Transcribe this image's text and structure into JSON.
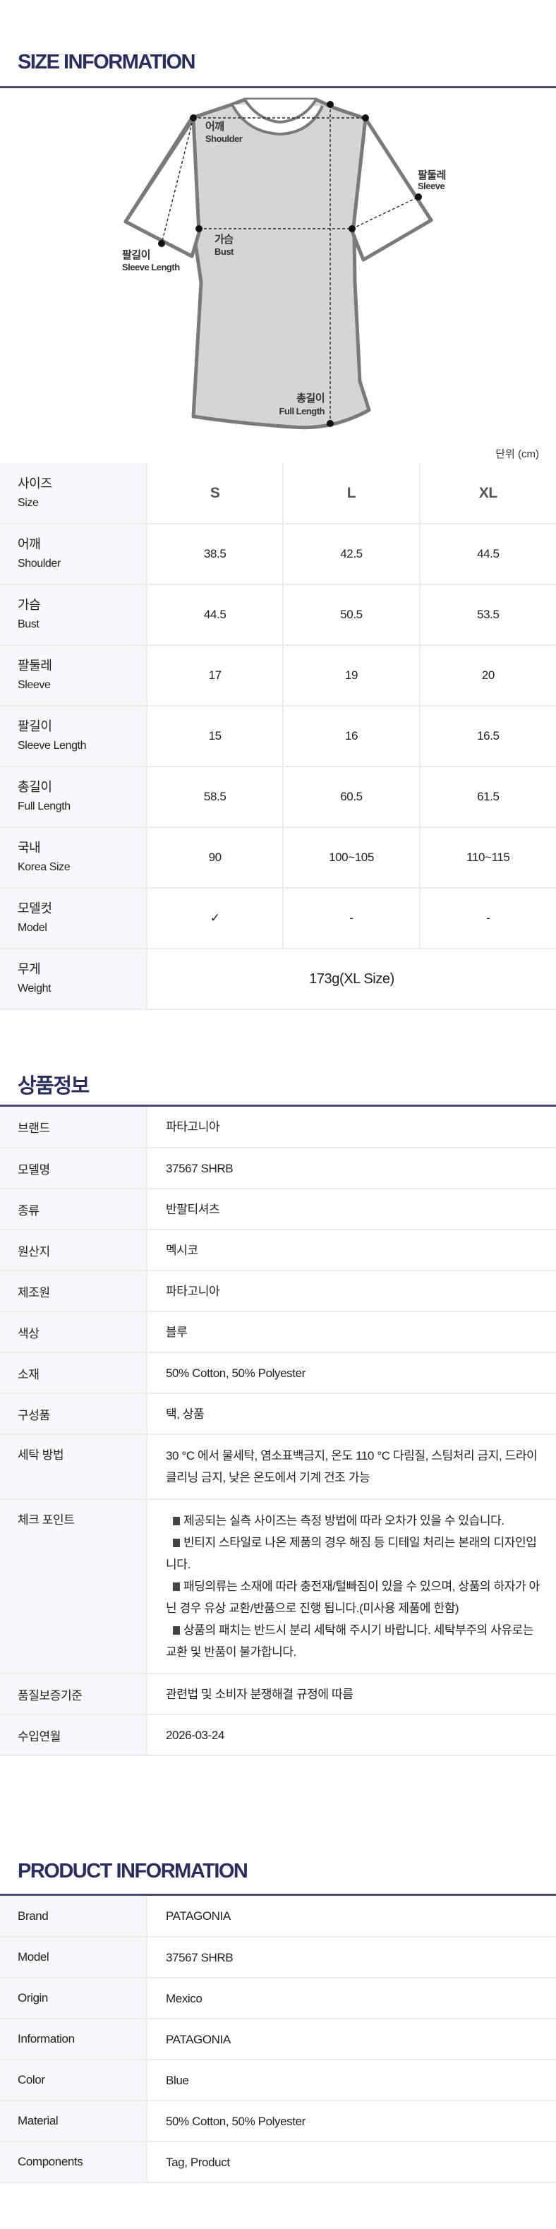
{
  "size_section": {
    "title": "SIZE INFORMATION",
    "diagram": {
      "shoulder": {
        "ko": "어깨",
        "en": "Shoulder"
      },
      "sleeve": {
        "ko": "팔둘레",
        "en": "Sleeve"
      },
      "bust": {
        "ko": "가슴",
        "en": "Bust"
      },
      "sleeve_length": {
        "ko": "팔길이",
        "en": "Sleeve Length"
      },
      "full_length": {
        "ko": "총길이",
        "en": "Full Length"
      }
    },
    "unit": "단위 (cm)",
    "table": {
      "header": {
        "ko": "사이즈",
        "en": "Size",
        "sizes": [
          "S",
          "L",
          "XL"
        ]
      },
      "rows": [
        {
          "ko": "어깨",
          "en": "Shoulder",
          "values": [
            "38.5",
            "42.5",
            "44.5"
          ]
        },
        {
          "ko": "가슴",
          "en": "Bust",
          "values": [
            "44.5",
            "50.5",
            "53.5"
          ]
        },
        {
          "ko": "팔둘레",
          "en": "Sleeve",
          "values": [
            "17",
            "19",
            "20"
          ]
        },
        {
          "ko": "팔길이",
          "en": "Sleeve Length",
          "values": [
            "15",
            "16",
            "16.5"
          ]
        },
        {
          "ko": "총길이",
          "en": "Full Length",
          "values": [
            "58.5",
            "60.5",
            "61.5"
          ]
        },
        {
          "ko": "국내",
          "en": "Korea Size",
          "values": [
            "90",
            "100~105",
            "110~115"
          ]
        },
        {
          "ko": "모델컷",
          "en": "Model",
          "values": [
            "✓",
            "-",
            "-"
          ]
        }
      ],
      "weight": {
        "ko": "무게",
        "en": "Weight",
        "value": "173g(XL Size)"
      }
    }
  },
  "kr_info": {
    "title": "상품정보",
    "rows": [
      {
        "label": "브랜드",
        "value": "파타고니아"
      },
      {
        "label": "모델명",
        "value": "37567 SHRB"
      },
      {
        "label": "종류",
        "value": "반팔티셔츠"
      },
      {
        "label": "원산지",
        "value": "멕시코"
      },
      {
        "label": "제조원",
        "value": "파타고니아"
      },
      {
        "label": "색상",
        "value": "블루"
      },
      {
        "label": "소재",
        "value": "50% Cotton, 50% Polyester"
      },
      {
        "label": "구성품",
        "value": "택, 상품"
      },
      {
        "label": "세탁 방법",
        "value": "30 °C 에서 물세탁, 염소표백금지, 온도 110 °C 다림질, 스팀처리 금지, 드라이클리닝 금지, 낮은 온도에서 기계 건조 가능"
      }
    ],
    "check_point": {
      "label": "체크 포인트",
      "items": [
        "제공되는 실측 사이즈는 측정 방법에 따라 오차가 있을 수 있습니다.",
        "빈티지 스타일로 나온 제품의 경우 해짐 등 디테일 처리는 본래의 디자인입니다.",
        "패딩의류는 소재에 따라 충전재/털빠짐이 있을 수 있으며, 상품의 하자가 아닌 경우 유상 교환/반품으로 진행 됩니다.(미사용 제품에 한함)",
        "상품의 패치는 반드시 분리 세탁해 주시기 바랍니다. 세탁부주의 사유로는 교환 및 반품이 불가합니다."
      ]
    },
    "rows_after": [
      {
        "label": "품질보증기준",
        "value": "관련법 및 소비자 분쟁해결 규정에 따름"
      },
      {
        "label": "수입연월",
        "value": "2026-03-24"
      }
    ]
  },
  "en_info": {
    "title": "PRODUCT INFORMATION",
    "rows": [
      {
        "label": "Brand",
        "value": "PATAGONIA"
      },
      {
        "label": "Model",
        "value": "37567 SHRB"
      },
      {
        "label": "Origin",
        "value": "Mexico"
      },
      {
        "label": "Information",
        "value": "PATAGONIA"
      },
      {
        "label": "Color",
        "value": "Blue"
      },
      {
        "label": "Material",
        "value": "50% Cotton, 50% Polyester"
      },
      {
        "label": "Components",
        "value": "Tag, Product"
      }
    ]
  },
  "colors": {
    "title": "#2c2d5b",
    "label_bg": "#f7f8fc",
    "shirt_fill": "#d4d5d7",
    "shirt_stroke": "#7a7a7a"
  }
}
